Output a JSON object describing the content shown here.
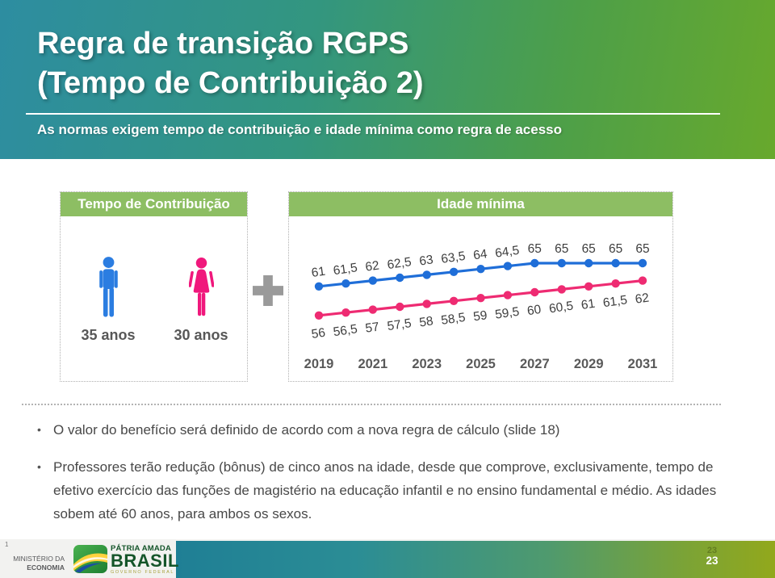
{
  "slide": {
    "title_line1": "Regra de transição RGPS",
    "title_line2": "(Tempo de Contribuição 2)",
    "subtitle": "As normas exigem tempo de contribuição e idade mínima como regra de acesso",
    "corner_number": "1",
    "page_number": "23",
    "page_number_ghost": "23"
  },
  "contribution_box": {
    "header": "Tempo de Contribuição",
    "male_label": "35 anos",
    "female_label": "30 anos",
    "male_color": "#2b7de1",
    "female_color": "#f0187c"
  },
  "age_box": {
    "header": "Idade mínima"
  },
  "chart_data": {
    "type": "line",
    "title": "Idade mínima",
    "x": [
      2019,
      2020,
      2021,
      2022,
      2023,
      2024,
      2025,
      2026,
      2027,
      2028,
      2029,
      2030,
      2031
    ],
    "x_tick_labels": [
      "2019",
      "2021",
      "2023",
      "2025",
      "2027",
      "2029",
      "2031"
    ],
    "ylim": [
      54,
      67
    ],
    "grid": false,
    "legend": "none",
    "series": [
      {
        "id": "linha-azul-superior",
        "color": "#1f6ed8",
        "label_position": "above",
        "values": [
          61,
          61.5,
          62,
          62.5,
          63,
          63.5,
          64,
          64.5,
          65,
          65,
          65,
          65,
          65
        ],
        "labels": [
          "61",
          "61,5",
          "62",
          "62,5",
          "63",
          "63,5",
          "64",
          "64,5",
          "65",
          "65",
          "65",
          "65",
          "65"
        ]
      },
      {
        "id": "linha-rosa-inferior",
        "color": "#ee2b72",
        "label_position": "below",
        "values": [
          56,
          56.5,
          57,
          57.5,
          58,
          58.5,
          59,
          59.5,
          60,
          60.5,
          61,
          61.5,
          62
        ],
        "labels": [
          "56",
          "56,5",
          "57",
          "57,5",
          "58",
          "58,5",
          "59",
          "59,5",
          "60",
          "60,5",
          "61",
          "61,5",
          "62"
        ]
      }
    ]
  },
  "bullets": {
    "marker": "•",
    "items": [
      "O valor do benefício será definido  de acordo com a nova regra de cálculo (slide 18)",
      "Professores terão redução (bônus) de cinco anos na idade, desde que comprove, exclusivamente, tempo de efetivo exercício das funções de magistério na educação infantil e no ensino fundamental e médio.  As idades sobem até 60 anos, para ambos os sexos."
    ]
  },
  "footer": {
    "ministry_line1": "MINISTÉRIO DA",
    "ministry_line2": "ECONOMIA",
    "logo_line1": "PÁTRIA AMADA",
    "logo_line2": "BRASIL",
    "logo_line3": "GOVERNO FEDERAL"
  },
  "colors": {
    "plus_sign": "#9a9a9a",
    "header_bar_green": "#8dbe63",
    "header_gradient_left_teal": "#2d8da1",
    "header_gradient_right_green": "#68a92c",
    "footer_bar_left_teal": "#1f7f95",
    "footer_bar_right_green": "#92a81c"
  }
}
